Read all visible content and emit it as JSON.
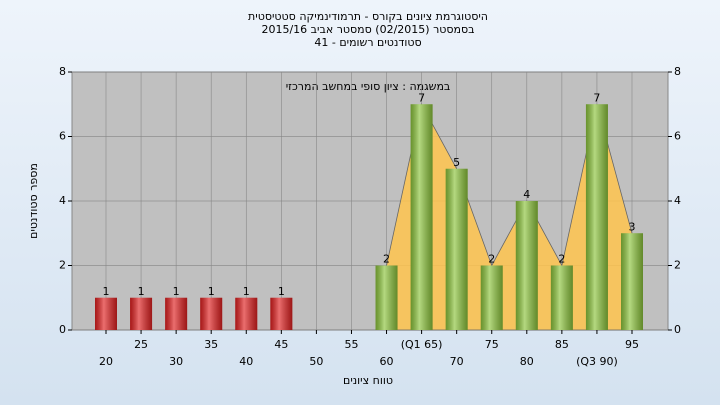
{
  "chart_data": {
    "type": "bar",
    "title": [
      "היסטוגרמת ציונים בקורס - תרמודינמיקה סטטיסטית",
      "בסמסטר (02/2015) סמסטר אביב 2015/16",
      "סטודנטים רשומים - 41"
    ],
    "annotation": "במשגמה : ציון סופי במחשב המרכזי",
    "x_label": "טווח ציונים",
    "y_label": "מספר סטודנטים",
    "categories": [
      "20",
      "25",
      "30",
      "35",
      "40",
      "45",
      "50",
      "55",
      "60",
      "(Q1 65)",
      "70",
      "75",
      "80",
      "85",
      "(Q3 90)",
      "95"
    ],
    "values": [
      1,
      1,
      1,
      1,
      1,
      1,
      0,
      0,
      2,
      7,
      5,
      2,
      4,
      2,
      7,
      3
    ],
    "colors": [
      "#e02020",
      "#e02020",
      "#e02020",
      "#e02020",
      "#e02020",
      "#e02020",
      "#e02020",
      "#e02020",
      "#8cc43c",
      "#8cc43c",
      "#8cc43c",
      "#8cc43c",
      "#8cc43c",
      "#8cc43c",
      "#8cc43c",
      "#8cc43c"
    ],
    "area_color": "#ffc44e",
    "ylim": [
      0,
      8
    ],
    "yticks": [
      0,
      2,
      4,
      6,
      8
    ],
    "y2lim": [
      0,
      8
    ],
    "y2ticks": [
      0,
      2,
      4,
      6,
      8
    ],
    "grid": true
  }
}
